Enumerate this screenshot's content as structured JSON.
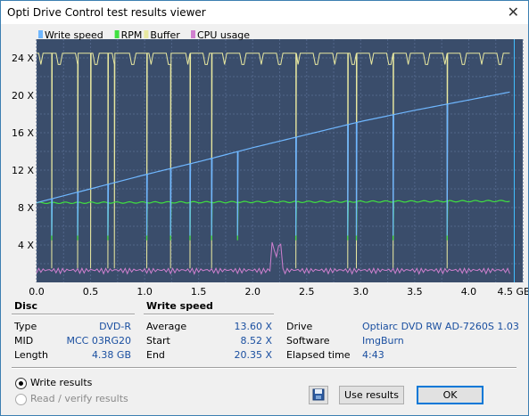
{
  "window": {
    "title": "Opti Drive Control test results viewer",
    "close_glyph": "✕"
  },
  "chart_data": {
    "type": "line",
    "legend": [
      {
        "name": "Write speed",
        "color": "#6fb7ff"
      },
      {
        "name": "RPM",
        "color": "#40e040"
      },
      {
        "name": "Buffer",
        "color": "#e8e8a0"
      },
      {
        "name": "CPU usage",
        "color": "#d080d0"
      }
    ],
    "x_unit": "GB",
    "y_unit": "X",
    "xlim": [
      0,
      4.5
    ],
    "ylim": [
      0,
      26
    ],
    "x_ticks": [
      "0.0",
      "0.5",
      "1.0",
      "1.5",
      "2.0",
      "2.5",
      "3.0",
      "3.5",
      "4.0",
      "4.5 GB"
    ],
    "y_ticks": [
      "4 X",
      "8 X",
      "12 X",
      "16 X",
      "20 X",
      "24 X"
    ],
    "grid": true,
    "series": [
      {
        "name": "Write speed",
        "points": [
          [
            0.0,
            8.52
          ],
          [
            0.5,
            10.0
          ],
          [
            1.0,
            11.5
          ],
          [
            1.5,
            12.9
          ],
          [
            2.0,
            14.4
          ],
          [
            2.5,
            15.8
          ],
          [
            3.0,
            17.2
          ],
          [
            3.5,
            18.4
          ],
          [
            4.0,
            19.5
          ],
          [
            4.38,
            20.35
          ]
        ]
      },
      {
        "name": "RPM",
        "points": [
          [
            0.0,
            8.5
          ],
          [
            4.38,
            8.7
          ]
        ]
      },
      {
        "name": "Buffer",
        "points": [
          [
            0.0,
            24.5
          ],
          [
            4.38,
            24.5
          ]
        ]
      },
      {
        "name": "CPU usage",
        "points": [
          [
            0.0,
            1.0
          ],
          [
            1.0,
            1.0
          ],
          [
            2.1,
            1.2
          ],
          [
            2.2,
            4.3
          ],
          [
            2.3,
            1.2
          ],
          [
            4.38,
            1.0
          ]
        ]
      }
    ],
    "spikes_x": [
      0.15,
      0.39,
      0.66,
      1.02,
      1.25,
      1.42,
      1.63,
      1.87,
      2.4,
      2.88,
      2.97,
      3.3,
      3.8
    ]
  },
  "disc": {
    "header": "Disc",
    "rows": [
      {
        "label": "Type",
        "value": "DVD-R"
      },
      {
        "label": "MID",
        "value": "MCC 03RG20"
      },
      {
        "label": "Length",
        "value": "4.38 GB"
      }
    ]
  },
  "write_speed": {
    "header": "Write speed",
    "rows": [
      {
        "label": "Average",
        "value": "13.60 X"
      },
      {
        "label": "Start",
        "value": "8.52 X"
      },
      {
        "label": "End",
        "value": "20.35 X"
      }
    ]
  },
  "info": {
    "rows": [
      {
        "label": "Drive",
        "value": "Optiarc  DVD RW AD-7260S 1.03"
      },
      {
        "label": "Software",
        "value": "ImgBurn"
      },
      {
        "label": "Elapsed time",
        "value": "4:43"
      }
    ]
  },
  "options": {
    "write_results": "Write results",
    "read_verify": "Read / verify results"
  },
  "buttons": {
    "use_results": "Use results",
    "ok": "OK",
    "save_icon": "floppy-disk"
  }
}
